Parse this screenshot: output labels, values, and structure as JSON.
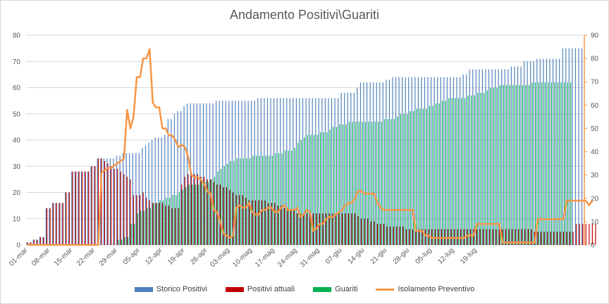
{
  "chart_data": {
    "type": "bar",
    "title": "Andamento Positivi\\Guariti",
    "xlabel": "",
    "ylabel": "",
    "ylim": [
      0,
      80
    ],
    "y2lim": [
      0,
      90
    ],
    "yticks": [
      "0",
      "10",
      "20",
      "30",
      "40",
      "50",
      "60",
      "70",
      "80"
    ],
    "y2ticks": [
      "0",
      "10",
      "20",
      "30",
      "40",
      "50",
      "60",
      "70",
      "80",
      "90"
    ],
    "xticks": [
      "01-mar",
      "08-mar",
      "15-mar",
      "22-mar",
      "29-mar",
      "05-apr",
      "12-apr",
      "19-apr",
      "26-apr",
      "03-mag",
      "10-mag",
      "17-mag",
      "24-mag",
      "31-mag",
      "07-giu",
      "14-giu",
      "21-giu",
      "28-giu",
      "05-lug",
      "12-lug",
      "19-lug"
    ],
    "grid": true,
    "legend_position": "bottom",
    "series": [
      {
        "name": "Storico Positivi",
        "type": "bar",
        "axis": "left",
        "color": "#4f81bd",
        "values": [
          1,
          1,
          2,
          2,
          3,
          3,
          14,
          14,
          16,
          16,
          16,
          16,
          20,
          20,
          28,
          28,
          28,
          28,
          28,
          28,
          30,
          30,
          33,
          33,
          33,
          33,
          33,
          33,
          34,
          34,
          35,
          35,
          35,
          35,
          35,
          35,
          37,
          38,
          39,
          40,
          41,
          41,
          41,
          42,
          48,
          48,
          50,
          51,
          51,
          53,
          54,
          54,
          54,
          54,
          54,
          54,
          54,
          54,
          54,
          55,
          55,
          55,
          55,
          55,
          55,
          55,
          55,
          55,
          55,
          55,
          55,
          55,
          56,
          56,
          56,
          56,
          56,
          56,
          56,
          56,
          56,
          56,
          56,
          56,
          56,
          56,
          56,
          56,
          56,
          56,
          56,
          56,
          56,
          56,
          56,
          56,
          56,
          56,
          58,
          58,
          58,
          58,
          58,
          60,
          62,
          62,
          62,
          62,
          62,
          62,
          62,
          62,
          63,
          63,
          64,
          64,
          64,
          64,
          64,
          64,
          64,
          64,
          64,
          64,
          64,
          64,
          64,
          64,
          64,
          64,
          64,
          64,
          64,
          64,
          64,
          64,
          65,
          65,
          67,
          67,
          67,
          67,
          67,
          67,
          67,
          67,
          67,
          67,
          67,
          67,
          67,
          68,
          68,
          68,
          68,
          70,
          70,
          70,
          70,
          71,
          71,
          71,
          71,
          71,
          71,
          71,
          71,
          75,
          75,
          75,
          75,
          75,
          75,
          75
        ]
      },
      {
        "name": "Positivi attuali",
        "type": "bar",
        "axis": "left",
        "color": "#c00000",
        "values": [
          1,
          1,
          2,
          2,
          3,
          3,
          14,
          14,
          16,
          16,
          16,
          16,
          20,
          20,
          28,
          28,
          28,
          28,
          28,
          28,
          30,
          30,
          33,
          33,
          32,
          31,
          30,
          29,
          29,
          28,
          27,
          26,
          25,
          19,
          19,
          19,
          20,
          18,
          17,
          16,
          16,
          16,
          16,
          15,
          15,
          14,
          14,
          14,
          23,
          26,
          27,
          27,
          27,
          27,
          26,
          26,
          25,
          25,
          24,
          23,
          23,
          22,
          22,
          21,
          20,
          19,
          19,
          19,
          18,
          17,
          17,
          17,
          17,
          17,
          17,
          16,
          16,
          16,
          15,
          15,
          14,
          14,
          13,
          13,
          12,
          12,
          12,
          12,
          12,
          12,
          12,
          12,
          12,
          12,
          12,
          12,
          12,
          12,
          12,
          12,
          12,
          12,
          12,
          11,
          10,
          10,
          10,
          9,
          9,
          8,
          8,
          8,
          7,
          7,
          7,
          7,
          7,
          7,
          6,
          6,
          6,
          6,
          6,
          6,
          6,
          6,
          6,
          6,
          6,
          6,
          6,
          6,
          6,
          6,
          6,
          6,
          6,
          6,
          6,
          6,
          6,
          6,
          6,
          6,
          6,
          6,
          6,
          6,
          6,
          6,
          6,
          6,
          6,
          6,
          6,
          6,
          6,
          6,
          5,
          5,
          5,
          5,
          5,
          5,
          5,
          5,
          5,
          5,
          5,
          5,
          5,
          8,
          8,
          8,
          8,
          8,
          8,
          8
        ]
      },
      {
        "name": "Guariti",
        "type": "bar",
        "axis": "left",
        "color": "#00b050",
        "values": [
          0,
          0,
          0,
          0,
          0,
          0,
          0,
          0,
          0,
          0,
          0,
          0,
          0,
          0,
          0,
          0,
          0,
          0,
          0,
          0,
          0,
          0,
          0,
          0,
          0,
          0,
          0,
          0,
          2,
          2,
          3,
          3,
          8,
          8,
          12,
          13,
          13,
          14,
          14,
          16,
          16,
          17,
          17,
          18,
          18,
          19,
          19,
          20,
          21,
          22,
          23,
          23,
          23,
          23,
          24,
          24,
          24,
          25,
          26,
          28,
          29,
          30,
          31,
          32,
          32,
          33,
          33,
          33,
          33,
          33,
          34,
          34,
          34,
          34,
          34,
          34,
          34,
          35,
          35,
          35,
          36,
          36,
          36,
          37,
          39,
          40,
          41,
          42,
          42,
          42,
          42,
          43,
          43,
          43,
          44,
          45,
          45,
          46,
          46,
          46,
          47,
          47,
          47,
          47,
          47,
          47,
          47,
          47,
          47,
          47,
          47,
          48,
          48,
          48,
          48,
          49,
          50,
          50,
          50,
          51,
          51,
          52,
          52,
          52,
          52,
          53,
          53,
          54,
          54,
          55,
          55,
          56,
          56,
          56,
          56,
          56,
          56,
          57,
          57,
          57,
          58,
          58,
          58,
          59,
          60,
          60,
          60,
          61,
          61,
          61,
          61,
          61,
          61,
          61,
          61,
          61,
          61,
          62,
          62,
          62,
          62,
          62,
          62,
          62,
          62,
          62,
          62,
          62,
          62,
          62
        ]
      },
      {
        "name": "Isolamento Preventivo",
        "type": "line",
        "axis": "right",
        "color": "#f79646",
        "values": [
          0,
          0,
          0,
          0,
          0,
          0,
          0,
          0,
          0,
          0,
          0,
          0,
          0,
          0,
          0,
          0,
          0,
          0,
          0,
          0,
          0,
          0,
          0,
          31,
          32,
          33,
          33,
          34,
          35,
          36,
          37,
          58,
          50,
          55,
          72,
          72,
          80,
          80,
          84,
          61,
          59,
          59,
          50,
          50,
          47,
          47,
          45,
          42,
          43,
          42,
          38,
          30,
          29,
          29,
          28,
          26,
          23,
          22,
          15,
          14,
          10,
          5,
          4,
          3,
          4,
          16,
          17,
          16,
          16,
          18,
          14,
          13,
          13,
          15,
          15,
          16,
          16,
          14,
          14,
          16,
          17,
          15,
          15,
          15,
          16,
          12,
          13,
          15,
          14,
          6,
          7,
          9,
          9,
          11,
          12,
          12,
          13,
          14,
          15,
          17,
          18,
          18,
          20,
          23,
          23,
          22,
          22,
          22,
          22,
          18,
          16,
          15,
          15,
          15,
          15,
          15,
          15,
          15,
          15,
          15,
          15,
          6,
          6,
          6,
          4,
          4,
          3,
          3,
          3,
          3,
          3,
          3,
          3,
          3,
          3,
          3,
          3,
          4,
          4,
          4,
          9,
          9,
          9,
          9,
          9,
          9,
          9,
          9,
          1,
          1,
          1,
          1,
          1,
          1,
          1,
          1,
          1,
          1,
          1,
          11,
          11,
          11,
          11,
          11,
          11,
          11,
          11,
          11,
          19,
          19,
          19,
          19,
          19,
          19,
          19,
          17,
          19
        ]
      }
    ]
  }
}
